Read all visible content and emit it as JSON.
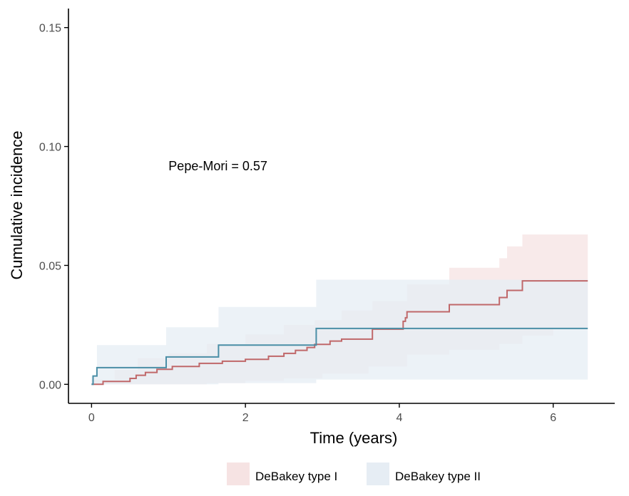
{
  "chart_data": {
    "type": "line",
    "subtype": "step",
    "title": "",
    "xlabel": "Time (years)",
    "ylabel": "Cumulative incidence",
    "xlim": [
      -0.3,
      6.8
    ],
    "ylim": [
      -0.008,
      0.158
    ],
    "x_ticks": [
      {
        "value": 0,
        "label": "0"
      },
      {
        "value": 2,
        "label": "2"
      },
      {
        "value": 4,
        "label": "4"
      },
      {
        "value": 6,
        "label": "6"
      }
    ],
    "y_ticks": [
      {
        "value": 0.0,
        "label": "0.00"
      },
      {
        "value": 0.05,
        "label": "0.05"
      },
      {
        "value": 0.1,
        "label": "0.10"
      },
      {
        "value": 0.15,
        "label": "0.15"
      }
    ],
    "grid": false,
    "legend_position": "bottom",
    "annotation": {
      "text": "Pepe-Mori = 0.57",
      "x": 1.0,
      "y": 0.09
    },
    "series": [
      {
        "name": "DeBakey type I",
        "line_color": "#c0686a",
        "ribbon_color": "#f6e3e3",
        "step_points": [
          [
            0.0,
            0.0
          ],
          [
            0.15,
            0.0012
          ],
          [
            0.5,
            0.0025
          ],
          [
            0.58,
            0.0038
          ],
          [
            0.7,
            0.005
          ],
          [
            0.85,
            0.0063
          ],
          [
            1.05,
            0.0075
          ],
          [
            1.4,
            0.0088
          ],
          [
            1.7,
            0.0097
          ],
          [
            2.0,
            0.0105
          ],
          [
            2.3,
            0.0118
          ],
          [
            2.5,
            0.013
          ],
          [
            2.65,
            0.0143
          ],
          [
            2.8,
            0.0155
          ],
          [
            2.9,
            0.0168
          ],
          [
            3.1,
            0.0182
          ],
          [
            3.25,
            0.019
          ],
          [
            3.65,
            0.0232
          ],
          [
            4.05,
            0.0265
          ],
          [
            4.08,
            0.028
          ],
          [
            4.1,
            0.0305
          ],
          [
            4.65,
            0.0335
          ],
          [
            5.3,
            0.0365
          ],
          [
            5.4,
            0.0395
          ],
          [
            5.6,
            0.0435
          ],
          [
            6.45,
            0.0435
          ]
        ],
        "ci_lower": [
          [
            0.0,
            0.0
          ],
          [
            0.7,
            0.0
          ],
          [
            0.9,
            0.0
          ],
          [
            1.5,
            0.0005
          ],
          [
            2.0,
            0.0015
          ],
          [
            2.5,
            0.0025
          ],
          [
            3.0,
            0.0045
          ],
          [
            3.6,
            0.0075
          ],
          [
            4.1,
            0.0125
          ],
          [
            4.65,
            0.0145
          ],
          [
            5.3,
            0.017
          ],
          [
            5.6,
            0.0205
          ],
          [
            6.0,
            0.0235
          ],
          [
            6.45,
            0.0245
          ]
        ],
        "ci_upper": [
          [
            0.0,
            0.002
          ],
          [
            0.3,
            0.006
          ],
          [
            0.6,
            0.011
          ],
          [
            1.0,
            0.013
          ],
          [
            1.5,
            0.017
          ],
          [
            2.0,
            0.021
          ],
          [
            2.5,
            0.025
          ],
          [
            2.9,
            0.027
          ],
          [
            3.25,
            0.031
          ],
          [
            3.65,
            0.035
          ],
          [
            4.1,
            0.042
          ],
          [
            4.65,
            0.049
          ],
          [
            5.3,
            0.053
          ],
          [
            5.4,
            0.058
          ],
          [
            5.6,
            0.063
          ],
          [
            6.45,
            0.063
          ]
        ]
      },
      {
        "name": "DeBakey type II",
        "line_color": "#4a8ea6",
        "ribbon_color": "#e6edf4",
        "step_points": [
          [
            0.0,
            0.0
          ],
          [
            0.02,
            0.0035
          ],
          [
            0.07,
            0.007
          ],
          [
            0.97,
            0.0115
          ],
          [
            1.65,
            0.0165
          ],
          [
            2.92,
            0.0235
          ],
          [
            6.45,
            0.0235
          ]
        ],
        "ci_lower": [
          [
            0.0,
            0.0
          ],
          [
            0.97,
            0.0
          ],
          [
            1.65,
            0.0005
          ],
          [
            2.92,
            0.002
          ],
          [
            6.45,
            0.0025
          ]
        ],
        "ci_upper": [
          [
            0.0,
            0.0035
          ],
          [
            0.07,
            0.0165
          ],
          [
            0.97,
            0.024
          ],
          [
            1.65,
            0.0325
          ],
          [
            2.92,
            0.044
          ],
          [
            6.45,
            0.044
          ]
        ]
      }
    ]
  },
  "colors": {
    "axis": "#000000",
    "tick_label": "#4d4d4d",
    "background": "#ffffff"
  }
}
